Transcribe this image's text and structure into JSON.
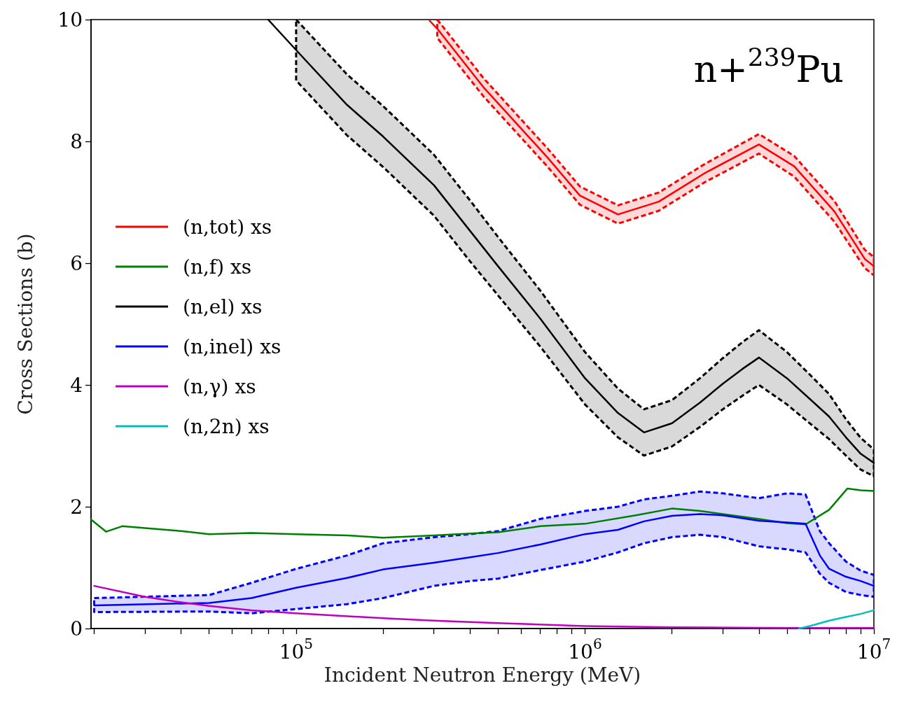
{
  "chart_data": {
    "type": "line",
    "title": "n+$^{239}$Pu",
    "xlabel": "Incident Neutron Energy (MeV)",
    "ylabel": "Cross Sections (b)",
    "log": "x",
    "xlim": [
      19500,
      10000000
    ],
    "ylim": [
      0,
      10
    ],
    "yticks": [
      0,
      2,
      4,
      6,
      8,
      10
    ],
    "xticks": [
      {
        "value": 20000,
        "label": null
      },
      {
        "value": 30000,
        "label": null
      },
      {
        "value": 40000,
        "label": null
      },
      {
        "value": 50000,
        "label": null
      },
      {
        "value": 60000,
        "label": null
      },
      {
        "value": 70000,
        "label": null
      },
      {
        "value": 80000,
        "label": null
      },
      {
        "value": 90000,
        "label": null
      },
      {
        "value": 100000,
        "label": "10$^{5}$"
      },
      {
        "value": 200000,
        "label": null
      },
      {
        "value": 300000,
        "label": null
      },
      {
        "value": 400000,
        "label": null
      },
      {
        "value": 500000,
        "label": null
      },
      {
        "value": 600000,
        "label": null
      },
      {
        "value": 700000,
        "label": null
      },
      {
        "value": 800000,
        "label": null
      },
      {
        "value": 900000,
        "label": null
      },
      {
        "value": 1000000,
        "label": "10$^{6}$"
      },
      {
        "value": 2000000,
        "label": null
      },
      {
        "value": 3000000,
        "label": null
      },
      {
        "value": 4000000,
        "label": null
      },
      {
        "value": 5000000,
        "label": null
      },
      {
        "value": 6000000,
        "label": null
      },
      {
        "value": 7000000,
        "label": null
      },
      {
        "value": 8000000,
        "label": null
      },
      {
        "value": 9000000,
        "label": null
      },
      {
        "value": 10000000,
        "label": "10$^{7}$"
      }
    ],
    "legend": "left",
    "marker": "none",
    "line_style": "solid",
    "series": [
      {
        "name": "(n,tot) xs",
        "color": "#ff0000",
        "x": [
          290000,
          308000,
          445000,
          740000,
          960000,
          1300000,
          1800000,
          2600000,
          4000000,
          5300000,
          7300000,
          9300000,
          10000000
        ],
        "values": [
          9.98,
          9.85,
          8.89,
          7.74,
          7.11,
          6.8,
          7.01,
          7.48,
          7.95,
          7.59,
          6.85,
          6.07,
          5.95
        ],
        "lower": [
          null,
          9.7,
          8.74,
          7.59,
          6.96,
          6.65,
          6.86,
          7.33,
          7.8,
          7.42,
          6.68,
          5.92,
          5.8
        ],
        "upper": [
          null,
          10,
          9.04,
          7.89,
          7.26,
          6.95,
          7.16,
          7.63,
          8.12,
          7.76,
          7.02,
          6.22,
          6.1
        ]
      },
      {
        "name": "(n,f) xs",
        "color": "#008000",
        "x": [
          19500,
          22000,
          25000,
          30000,
          40000,
          50000,
          70000,
          100000,
          150000,
          200000,
          300000,
          400000,
          500000,
          700000,
          1000000,
          1500000,
          2000000,
          2500000,
          3000000,
          4000000,
          5000000,
          5800000,
          7000000,
          8100000,
          9000000,
          10000000
        ],
        "values": [
          1.79,
          1.59,
          1.68,
          1.65,
          1.6,
          1.55,
          1.57,
          1.55,
          1.53,
          1.49,
          1.53,
          1.56,
          1.58,
          1.68,
          1.72,
          1.86,
          1.97,
          1.93,
          1.88,
          1.8,
          1.73,
          1.71,
          1.95,
          2.3,
          2.27,
          2.26
        ]
      },
      {
        "name": "(n,el) xs",
        "color": "#000000",
        "x": [
          80000,
          100000,
          150000,
          200000,
          300000,
          400000,
          500000,
          700000,
          1000000,
          1300000,
          1600000,
          2000000,
          2500000,
          3000000,
          3500000,
          4000000,
          5000000,
          6000000,
          7000000,
          8000000,
          9000000,
          10000000
        ],
        "values": [
          10,
          9.5,
          8.6,
          8.08,
          7.28,
          6.53,
          5.95,
          5.09,
          4.11,
          3.54,
          3.22,
          3.37,
          3.71,
          4.02,
          4.26,
          4.45,
          4.11,
          3.77,
          3.48,
          3.14,
          2.87,
          2.72
        ],
        "lower": [
          null,
          9.0,
          8.1,
          7.58,
          6.78,
          6.03,
          5.47,
          4.63,
          3.68,
          3.14,
          2.84,
          2.99,
          3.31,
          3.6,
          3.82,
          4.0,
          3.68,
          3.37,
          3.11,
          2.84,
          2.61,
          2.5
        ],
        "upper": [
          null,
          10,
          9.1,
          8.58,
          7.78,
          7.03,
          6.43,
          5.55,
          4.54,
          3.94,
          3.6,
          3.75,
          4.11,
          4.44,
          4.7,
          4.9,
          4.54,
          4.17,
          3.85,
          3.44,
          3.13,
          2.94
        ]
      },
      {
        "name": "(n,inel) xs",
        "color": "#0000ff",
        "x": [
          20000,
          50000,
          70000,
          100000,
          150000,
          200000,
          300000,
          400000,
          500000,
          700000,
          1000000,
          1300000,
          1600000,
          2000000,
          2500000,
          3000000,
          4000000,
          5000000,
          5800000,
          6500000,
          7000000,
          8000000,
          9000000,
          10000000
        ],
        "values": [
          0.38,
          0.42,
          0.5,
          0.67,
          0.83,
          0.97,
          1.08,
          1.17,
          1.24,
          1.38,
          1.55,
          1.62,
          1.76,
          1.85,
          1.88,
          1.86,
          1.77,
          1.74,
          1.72,
          1.2,
          0.98,
          0.85,
          0.78,
          0.7
        ],
        "lower": [
          0.27,
          0.28,
          0.25,
          0.32,
          0.4,
          0.5,
          0.7,
          0.78,
          0.82,
          0.96,
          1.1,
          1.25,
          1.4,
          1.5,
          1.54,
          1.5,
          1.35,
          1.3,
          1.25,
          0.9,
          0.75,
          0.6,
          0.55,
          0.52
        ],
        "upper": [
          0.5,
          0.55,
          0.75,
          0.98,
          1.2,
          1.4,
          1.5,
          1.55,
          1.6,
          1.8,
          1.93,
          2.0,
          2.12,
          2.18,
          2.25,
          2.22,
          2.14,
          2.22,
          2.2,
          1.6,
          1.4,
          1.1,
          0.95,
          0.88
        ]
      },
      {
        "name": "(n,γ) xs",
        "color": "#bf00bf",
        "x": [
          20000,
          30000,
          40000,
          50000,
          70000,
          100000,
          200000,
          300000,
          500000,
          1000000,
          2000000,
          5000000,
          10000000
        ],
        "values": [
          0.7,
          0.52,
          0.43,
          0.37,
          0.3,
          0.25,
          0.17,
          0.13,
          0.09,
          0.04,
          0.02,
          0.01,
          0.01
        ]
      },
      {
        "name": "(n,2n) xs",
        "color": "#00bfbf",
        "x": [
          5500000,
          6000000,
          7000000,
          8000000,
          9000000,
          10000000
        ],
        "values": [
          0,
          0.04,
          0.13,
          0.19,
          0.24,
          0.3
        ]
      }
    ]
  }
}
